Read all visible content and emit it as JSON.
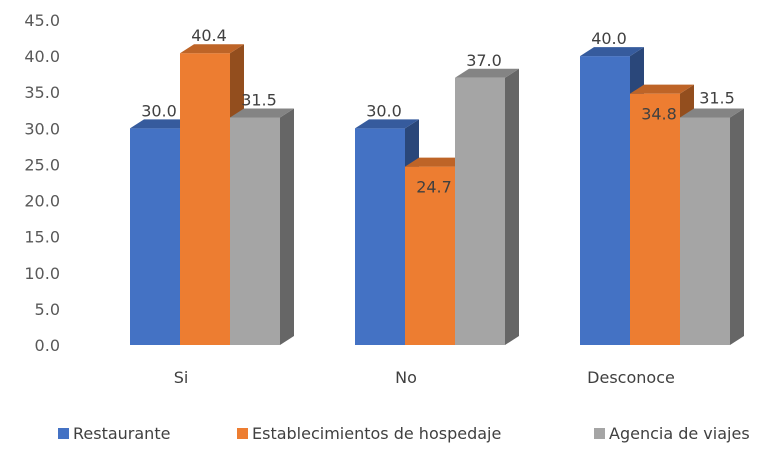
{
  "chart_data": {
    "type": "bar",
    "style": "3d-clustered-column",
    "categories": [
      "Si",
      "No",
      "Desconoce"
    ],
    "series": [
      {
        "name": "Restaurante",
        "color": "#4472C4",
        "values": [
          30.0,
          30.0,
          40.0
        ],
        "labels": [
          "30.0",
          "30.0",
          "40.0"
        ]
      },
      {
        "name": "Establecimientos de hospedaje",
        "color": "#ED7D31",
        "values": [
          40.4,
          24.7,
          34.8
        ],
        "labels": [
          "40.4",
          "24.7",
          "34.8"
        ]
      },
      {
        "name": "Agencia de viajes",
        "color": "#A5A5A5",
        "values": [
          31.5,
          37.0,
          31.5
        ],
        "labels": [
          "31.5",
          "37.0",
          "31.5"
        ]
      }
    ],
    "ylim": [
      0,
      45
    ],
    "yticks": [
      "0.0",
      "5.0",
      "10.0",
      "15.0",
      "20.0",
      "25.0",
      "30.0",
      "35.0",
      "40.0",
      "45.0"
    ],
    "ytick_values": [
      0,
      5,
      10,
      15,
      20,
      25,
      30,
      35,
      40,
      45
    ],
    "grid": false,
    "legend_position": "bottom"
  }
}
